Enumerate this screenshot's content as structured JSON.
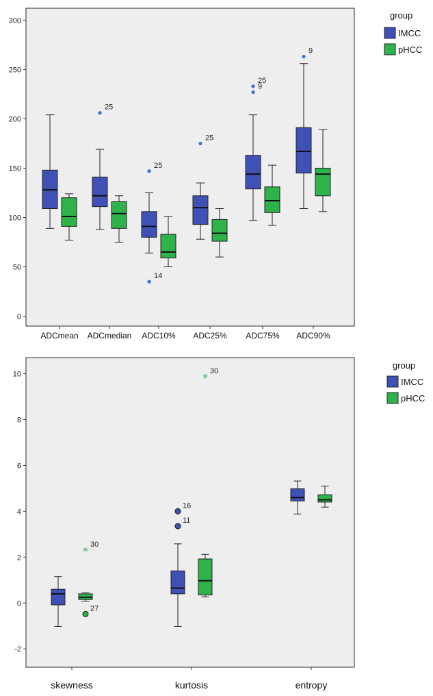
{
  "chart_data": [
    {
      "type": "boxplot",
      "title": "",
      "xlabel": "",
      "ylabel": "",
      "ylim": [
        -10,
        312
      ],
      "yticks": [
        "0",
        "50",
        "100",
        "150",
        "200",
        "250",
        "300"
      ],
      "categories": [
        "ADCmean",
        "ADCmedian",
        "ADC10%",
        "ADC25%",
        "ADC75%",
        "ADC90%"
      ],
      "legend": {
        "title": "group",
        "position": "right",
        "entries": [
          "IMCC",
          "pHCC"
        ]
      },
      "colors": {
        "IMCC": "#3f51b5",
        "pHCC": "#2db34a",
        "IMCC_outlier": "#3a6fd1"
      },
      "series": [
        {
          "name": "IMCC",
          "boxes": [
            {
              "whisker_low": 89,
              "q1": 109,
              "median": 128,
              "q3": 148,
              "whisker_high": 204
            },
            {
              "whisker_low": 88,
              "q1": 111,
              "median": 122,
              "q3": 141,
              "whisker_high": 169
            },
            {
              "whisker_low": 64,
              "q1": 80,
              "median": 91,
              "q3": 106,
              "whisker_high": 125
            },
            {
              "whisker_low": 78,
              "q1": 93,
              "median": 110,
              "q3": 122,
              "whisker_high": 135
            },
            {
              "whisker_low": 97,
              "q1": 129,
              "median": 144,
              "q3": 163,
              "whisker_high": 204
            },
            {
              "whisker_low": 109,
              "q1": 145,
              "median": 167,
              "q3": 191,
              "whisker_high": 256
            }
          ],
          "outliers": [
            {
              "category": "ADCmedian",
              "value": 206,
              "label": "25"
            },
            {
              "category": "ADC10%",
              "value": 147,
              "label": "25"
            },
            {
              "category": "ADC10%",
              "value": 35,
              "label": "14"
            },
            {
              "category": "ADC25%",
              "value": 175,
              "label": "25"
            },
            {
              "category": "ADC75%",
              "value": 233,
              "label": "25"
            },
            {
              "category": "ADC75%",
              "value": 227,
              "label": "9"
            },
            {
              "category": "ADC90%",
              "value": 263,
              "label": "9"
            }
          ]
        },
        {
          "name": "pHCC",
          "boxes": [
            {
              "whisker_low": 77,
              "q1": 91,
              "median": 101,
              "q3": 120,
              "whisker_high": 124
            },
            {
              "whisker_low": 75,
              "q1": 89,
              "median": 104,
              "q3": 116,
              "whisker_high": 122
            },
            {
              "whisker_low": 50,
              "q1": 59,
              "median": 65,
              "q3": 83,
              "whisker_high": 101
            },
            {
              "whisker_low": 60,
              "q1": 76,
              "median": 84,
              "q3": 98,
              "whisker_high": 109
            },
            {
              "whisker_low": 92,
              "q1": 105,
              "median": 117,
              "q3": 131,
              "whisker_high": 153
            },
            {
              "whisker_low": 106,
              "q1": 122,
              "median": 144,
              "q3": 150,
              "whisker_high": 189
            }
          ],
          "outliers": []
        }
      ]
    },
    {
      "type": "boxplot",
      "title": "",
      "xlabel": "",
      "ylabel": "",
      "ylim": [
        -2.8,
        10.7
      ],
      "yticks": [
        "-2",
        "0",
        "2",
        "4",
        "6",
        "8",
        "10"
      ],
      "categories": [
        "skewness",
        "kurtosis",
        "entropy"
      ],
      "legend": {
        "title": "group",
        "position": "right",
        "entries": [
          "IMCC",
          "pHCC"
        ]
      },
      "colors": {
        "IMCC": "#3f51b5",
        "pHCC": "#2db34a"
      },
      "series": [
        {
          "name": "IMCC",
          "boxes": [
            {
              "whisker_low": -1.02,
              "q1": -0.08,
              "median": 0.4,
              "q3": 0.6,
              "whisker_high": 1.15
            },
            {
              "whisker_low": -1.02,
              "q1": 0.4,
              "median": 0.65,
              "q3": 1.4,
              "whisker_high": 2.58
            },
            {
              "whisker_low": 3.88,
              "q1": 4.45,
              "median": 4.6,
              "q3": 4.98,
              "whisker_high": 5.32
            }
          ],
          "outliers": [
            {
              "category": "kurtosis",
              "value": 4.0,
              "label": "16",
              "marker": "circle"
            },
            {
              "category": "kurtosis",
              "value": 3.35,
              "label": "11",
              "marker": "circle"
            }
          ]
        },
        {
          "name": "pHCC",
          "boxes": [
            {
              "whisker_low": 0.08,
              "q1": 0.15,
              "median": 0.25,
              "q3": 0.4,
              "whisker_high": 0.45
            },
            {
              "whisker_low": 0.27,
              "q1": 0.35,
              "median": 0.97,
              "q3": 1.92,
              "whisker_high": 2.12
            },
            {
              "whisker_low": 4.18,
              "q1": 4.4,
              "median": 4.5,
              "q3": 4.72,
              "whisker_high": 5.1
            }
          ],
          "outliers": [
            {
              "category": "skewness",
              "value": 2.3,
              "label": "30",
              "marker": "star"
            },
            {
              "category": "skewness",
              "value": -0.48,
              "label": "27",
              "marker": "circle"
            },
            {
              "category": "kurtosis",
              "value": 9.87,
              "label": "30",
              "marker": "star"
            }
          ]
        }
      ]
    }
  ]
}
